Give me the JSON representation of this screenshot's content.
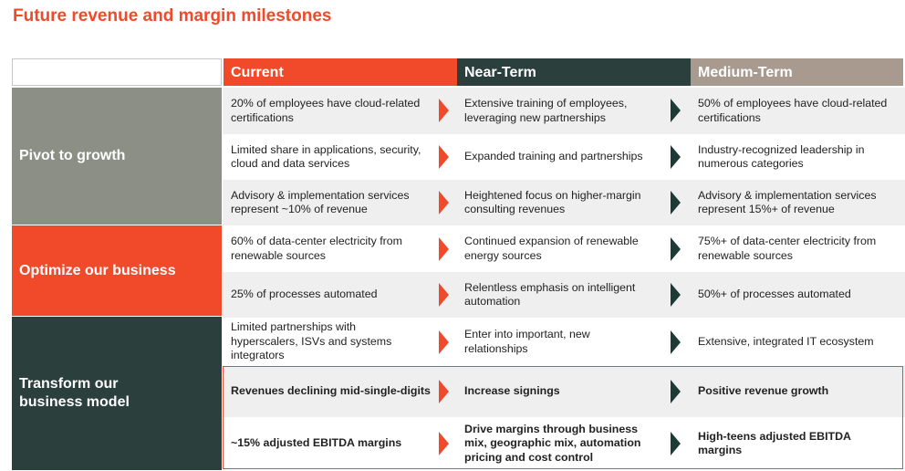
{
  "title": "Future revenue and margin milestones",
  "columns": {
    "current": "Current",
    "near_term": "Near-Term",
    "medium_term": "Medium-Term"
  },
  "categories": {
    "pivot": "Pivot to growth",
    "optimize": "Optimize our business",
    "transform": "Transform our business model"
  },
  "rows": [
    {
      "current": "20% of employees have cloud-related certifications",
      "near": "Extensive training of employees, leveraging new partnerships",
      "medium": "50% of employees have cloud-related certifications"
    },
    {
      "current": "Limited share in applications, security, cloud and data services",
      "near": "Expanded training and partnerships",
      "medium": "Industry-recognized leadership in numerous categories"
    },
    {
      "current": "Advisory & implementation services represent ~10% of revenue",
      "near": "Heightened focus on higher-margin consulting revenues",
      "medium": "Advisory & implementation services represent 15%+ of revenue"
    },
    {
      "current": "60% of data-center electricity from renewable sources",
      "near": "Continued expansion of renewable energy sources",
      "medium": "75%+ of data-center electricity from renewable sources"
    },
    {
      "current": "25% of processes automated",
      "near": "Relentless emphasis on intelligent automation",
      "medium": "50%+ of processes automated"
    },
    {
      "current": "Limited partnerships with hyperscalers, ISVs and systems integrators",
      "near": "Enter into important, new relationships",
      "medium": "Extensive, integrated IT ecosystem"
    },
    {
      "current": "Revenues declining mid-single-digits",
      "near": "Increase signings",
      "medium": "Positive revenue growth"
    },
    {
      "current": "~15% adjusted EBITDA margins",
      "near": "Drive margins through business mix, geographic mix, automation pricing and cost control",
      "medium": "High-teens adjusted EBITDA margins"
    }
  ],
  "colors": {
    "accent_orange": "#f04a2a",
    "dark_teal": "#2b3f3d",
    "grey_green": "#8c8f86",
    "taupe": "#a89a8f",
    "row_alt": "#efefef"
  }
}
